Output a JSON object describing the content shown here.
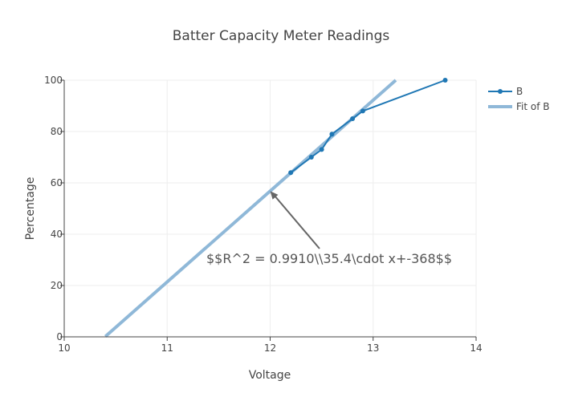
{
  "chart_data": {
    "type": "line",
    "title": "Batter Capacity Meter Readings",
    "xlabel": "Voltage",
    "ylabel": "Percentage",
    "xlim": [
      10,
      14
    ],
    "ylim": [
      0,
      100
    ],
    "x_ticks": [
      10,
      11,
      12,
      13,
      14
    ],
    "y_ticks": [
      0,
      20,
      40,
      60,
      80,
      100
    ],
    "grid": true,
    "legend_position": "top-right",
    "series": [
      {
        "name": "B",
        "kind": "line+markers",
        "color": "#1f77b4",
        "x": [
          12.2,
          12.4,
          12.5,
          12.6,
          12.8,
          12.9,
          13.7
        ],
        "y": [
          64,
          70,
          73,
          79,
          85,
          88,
          100
        ]
      },
      {
        "name": "Fit of B",
        "kind": "line",
        "color": "#8fb8d8",
        "slope": 35.4,
        "intercept": -368,
        "x_range": [
          10.4,
          13.22
        ]
      }
    ],
    "annotations": [
      {
        "text": "$$R^2 = 0.9910\\\\35.4\\cdot x+-368$$",
        "arrow_x": 12.0,
        "arrow_y": 56.8
      }
    ]
  }
}
